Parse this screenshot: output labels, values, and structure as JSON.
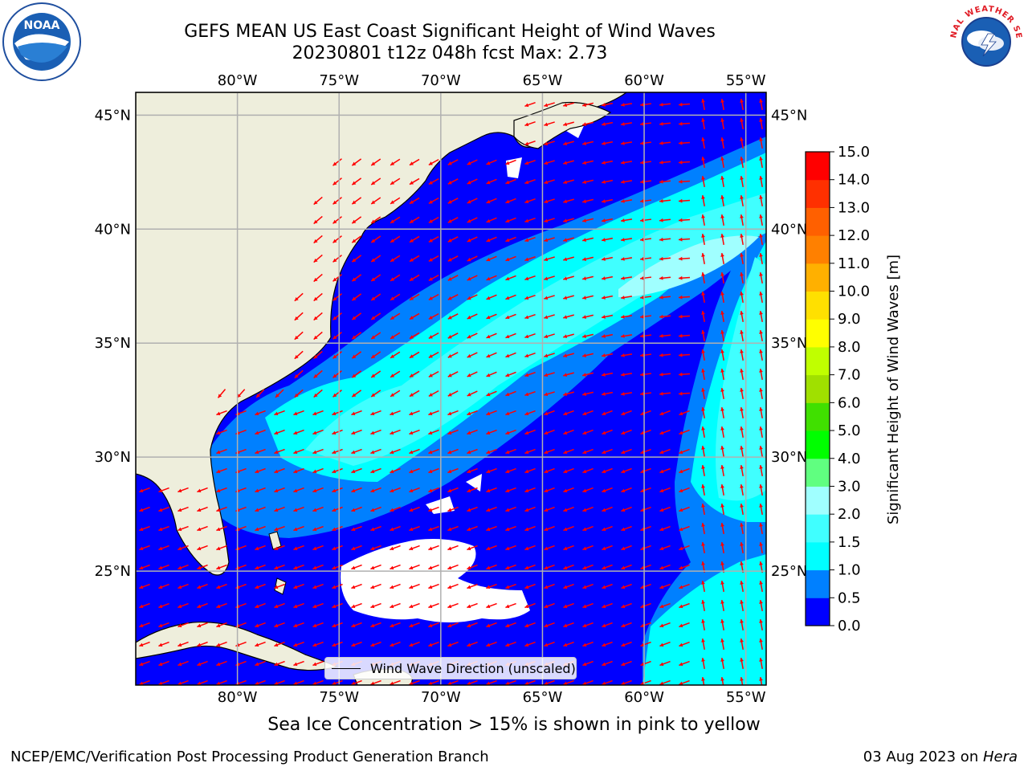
{
  "title": {
    "line1": "GEFS MEAN US East Coast Significant Height of Wind Waves",
    "line2": "20230801 t12z 048h fcst   Max: 2.73"
  },
  "logos": {
    "noaa": "NOAA",
    "nws": "NATIONAL WEATHER SERVICE"
  },
  "map": {
    "lon_labels": [
      "80°W",
      "75°W",
      "70°W",
      "65°W",
      "60°W",
      "55°W"
    ],
    "lat_labels": [
      "45°N",
      "40°N",
      "35°N",
      "30°N",
      "25°N"
    ],
    "lon_range": [
      -85,
      -54
    ],
    "lat_range": [
      20,
      46
    ],
    "land_color": "#eeeedc",
    "grid_color": "#b0b0b0",
    "arrow_color": "#ff0000",
    "legend_label": "Wind Wave Direction (unscaled)"
  },
  "colorbar": {
    "label": "Significant Height of Wind Waves [m]",
    "ticks": [
      "0.0",
      "0.5",
      "1.0",
      "1.5",
      "2.0",
      "3.0",
      "4.0",
      "5.0",
      "6.0",
      "7.0",
      "8.0",
      "9.0",
      "10.0",
      "11.0",
      "12.0",
      "13.0",
      "14.0",
      "15.0"
    ],
    "colors": [
      "#0000ff",
      "#0080ff",
      "#00ffff",
      "#40ffff",
      "#a0ffff",
      "#60ff80",
      "#00ff00",
      "#40e000",
      "#a0e000",
      "#c0ff00",
      "#ffff00",
      "#ffe000",
      "#ffb000",
      "#ff8000",
      "#ff6000",
      "#ff3000",
      "#ff0000"
    ]
  },
  "footer": {
    "note": "Sea Ice Concentration > 15% is shown in pink to yellow",
    "left": "NCEP/EMC/Verification Post Processing Product Generation Branch",
    "right_date": "03 Aug 2023 on ",
    "right_machine": "Hera"
  }
}
